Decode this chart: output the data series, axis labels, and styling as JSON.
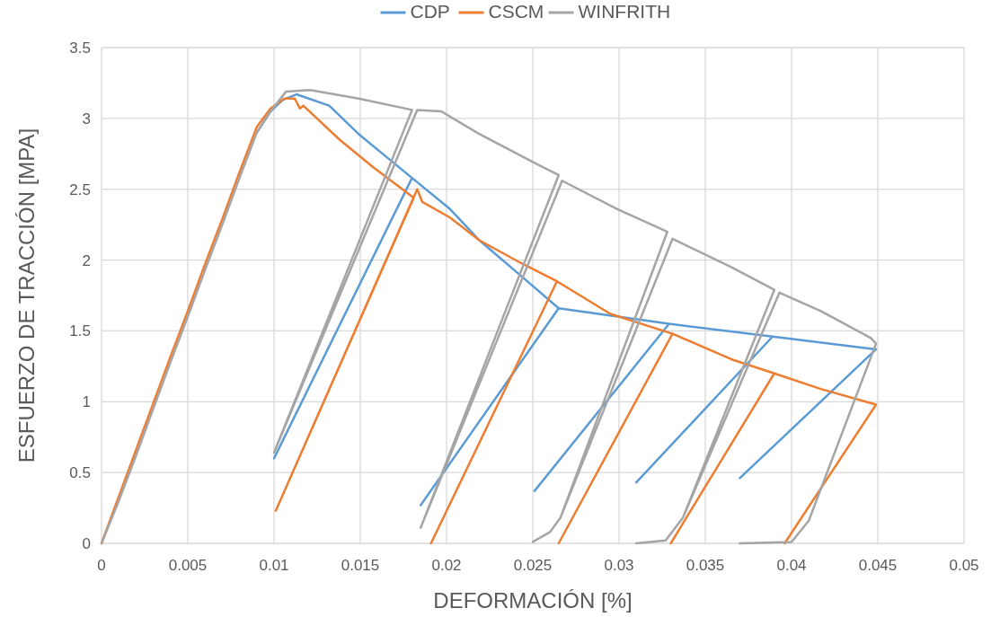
{
  "chart_data": {
    "type": "line",
    "xlabel": "DEFORMACIÓN [%]",
    "ylabel": "ESFUERZO DE TRACCIÓN [MPA]",
    "xlim": [
      0,
      0.05
    ],
    "xticks": [
      0,
      0.005,
      0.01,
      0.015,
      0.02,
      0.025,
      0.03,
      0.035,
      0.04,
      0.045,
      0.05
    ],
    "ylim": [
      0,
      3.5
    ],
    "yticks": [
      0,
      0.5,
      1,
      1.5,
      2,
      2.5,
      3,
      3.5
    ],
    "grid": true,
    "legend": "top",
    "marker": "none",
    "line_style": "solid",
    "series": [
      {
        "name": "CDP",
        "color": "#5b9bd5",
        "x": [
          0.009,
          0.0098,
          0.0105,
          0.0113,
          0.0132,
          0.0149,
          0.0167,
          0.018,
          0.01,
          0.018,
          0.0202,
          0.0219,
          0.0243,
          0.0265,
          0.0185,
          0.0265,
          0.0329,
          0.0251,
          0.0329,
          0.0389,
          0.031,
          0.0389,
          0.0449,
          0.037
        ],
        "values": [
          2.9,
          3.05,
          3.13,
          3.17,
          3.09,
          2.89,
          2.71,
          2.58,
          0.6,
          2.58,
          2.36,
          2.14,
          1.89,
          1.66,
          0.27,
          1.66,
          1.55,
          0.37,
          1.55,
          1.46,
          0.43,
          1.46,
          1.37,
          0.46
        ]
      },
      {
        "name": "CSCM",
        "color": "#ed7d31",
        "x": [
          0,
          0.001,
          0.002,
          0.003,
          0.004,
          0.005,
          0.006,
          0.007,
          0.008,
          0.009,
          0.0098,
          0.0106,
          0.0112,
          0.0115,
          0.0117,
          0.0138,
          0.0158,
          0.0181,
          0.0101,
          0.0183,
          0.0186,
          0.0202,
          0.0219,
          0.0243,
          0.0264,
          0.0191,
          0.0264,
          0.0295,
          0.0331,
          0.0265,
          0.0331,
          0.0365,
          0.039,
          0.033,
          0.039,
          0.0417,
          0.0449,
          0.0396
        ],
        "values": [
          0,
          0.33,
          0.66,
          0.99,
          1.32,
          1.64,
          1.97,
          2.29,
          2.62,
          2.94,
          3.07,
          3.14,
          3.14,
          3.07,
          3.09,
          2.85,
          2.65,
          2.44,
          0.23,
          2.5,
          2.41,
          2.3,
          2.14,
          1.98,
          1.85,
          0,
          1.85,
          1.62,
          1.48,
          0,
          1.48,
          1.3,
          1.2,
          0,
          1.2,
          1.09,
          0.98,
          0
        ]
      },
      {
        "name": "WINFRITH",
        "color": "#a5a5a5",
        "x": [
          0,
          0.001,
          0.002,
          0.003,
          0.004,
          0.005,
          0.006,
          0.007,
          0.008,
          0.009,
          0.0098,
          0.0107,
          0.0121,
          0.0149,
          0.018,
          0.01,
          0.0183,
          0.0197,
          0.0219,
          0.0252,
          0.0265,
          0.0185,
          0.0267,
          0.0299,
          0.0328,
          0.0266,
          0.026,
          0.025,
          0.026,
          0.0266,
          0.0331,
          0.0365,
          0.039,
          0.0337,
          0.0327,
          0.031,
          0.0327,
          0.0337,
          0.0393,
          0.0417,
          0.0446,
          0.0449,
          0.041,
          0.04,
          0.037
        ],
        "values": [
          0,
          0.3,
          0.62,
          0.95,
          1.28,
          1.6,
          1.93,
          2.25,
          2.58,
          2.9,
          3.05,
          3.19,
          3.2,
          3.14,
          3.06,
          0.64,
          3.06,
          3.05,
          2.89,
          2.68,
          2.6,
          0.11,
          2.56,
          2.36,
          2.2,
          0.18,
          0.08,
          0.01,
          0.08,
          0.18,
          2.15,
          1.95,
          1.79,
          0.18,
          0.02,
          0,
          0.02,
          0.18,
          1.77,
          1.64,
          1.45,
          1.41,
          0.16,
          0.01,
          0
        ]
      }
    ]
  }
}
